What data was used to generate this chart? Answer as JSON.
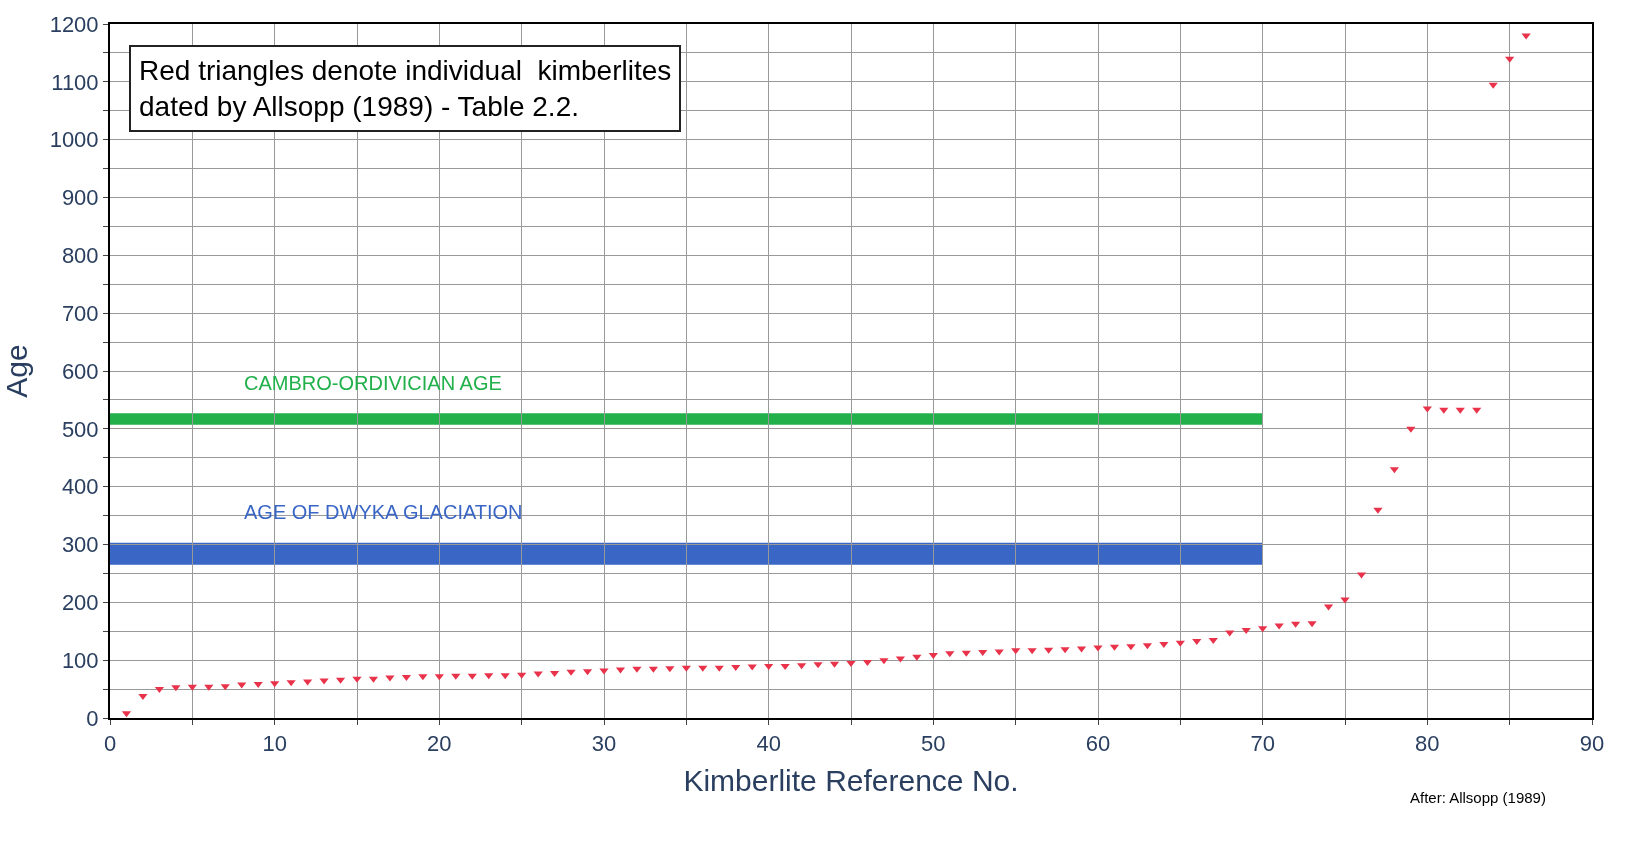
{
  "chart_data": {
    "type": "scatter",
    "xlabel": "Kimberlite Reference No.",
    "ylabel": "Age",
    "x": [
      1,
      2,
      3,
      4,
      5,
      6,
      7,
      8,
      9,
      10,
      11,
      12,
      13,
      14,
      15,
      16,
      17,
      18,
      19,
      20,
      21,
      22,
      23,
      24,
      25,
      26,
      27,
      28,
      29,
      30,
      31,
      32,
      33,
      34,
      35,
      36,
      37,
      38,
      39,
      40,
      41,
      42,
      43,
      44,
      45,
      46,
      47,
      48,
      49,
      50,
      51,
      52,
      53,
      54,
      55,
      56,
      57,
      58,
      59,
      60,
      61,
      62,
      63,
      64,
      65,
      66,
      67,
      68,
      69,
      70,
      71,
      72,
      73,
      74,
      75,
      76,
      77,
      78,
      79,
      80,
      81,
      82,
      83,
      84,
      85,
      86
    ],
    "series": [
      {
        "color": "#e8334a",
        "values": [
          8,
          38,
          50,
          53,
          54,
          54,
          55,
          58,
          59,
          60,
          62,
          63,
          65,
          66,
          68,
          68,
          70,
          71,
          72,
          72,
          73,
          73,
          74,
          74,
          75,
          77,
          78,
          80,
          81,
          82,
          84,
          85,
          85,
          86,
          87,
          87,
          87,
          88,
          89,
          90,
          90,
          91,
          93,
          94,
          95,
          97,
          100,
          103,
          106,
          109,
          112,
          113,
          114,
          115,
          117,
          117,
          118,
          119,
          120,
          122,
          123,
          124,
          126,
          128,
          130,
          133,
          135,
          148,
          152,
          155,
          160,
          163,
          164,
          193,
          205,
          248,
          360,
          430,
          500,
          535,
          533,
          533,
          533,
          1095,
          1140,
          1180
        ]
      }
    ],
    "marker": "triangle",
    "xlim": [
      0,
      90
    ],
    "xticks": [
      0,
      {
        "value": 5,
        "label": null
      },
      10,
      {
        "value": 15,
        "label": null
      },
      20,
      {
        "value": 25,
        "label": null
      },
      30,
      {
        "value": 35,
        "label": null
      },
      40,
      {
        "value": 45,
        "label": null
      },
      50,
      {
        "value": 55,
        "label": null
      },
      60,
      {
        "value": 65,
        "label": null
      },
      70,
      {
        "value": 75,
        "label": null
      },
      80,
      {
        "value": 85,
        "label": null
      },
      90
    ],
    "ylim": [
      0,
      1200
    ],
    "yticks": [
      0,
      {
        "value": 50,
        "label": null
      },
      100,
      {
        "value": 150,
        "label": null
      },
      200,
      {
        "value": 250,
        "label": null
      },
      300,
      {
        "value": 350,
        "label": null
      },
      400,
      {
        "value": 450,
        "label": null
      },
      500,
      {
        "value": 550,
        "label": null
      },
      600,
      {
        "value": 650,
        "label": null
      },
      700,
      {
        "value": 750,
        "label": null
      },
      800,
      {
        "value": 850,
        "label": null
      },
      900,
      {
        "value": 950,
        "label": null
      },
      1000,
      {
        "value": 1050,
        "label": null
      },
      1100,
      {
        "value": 1150,
        "label": null
      },
      1200
    ],
    "grid": true,
    "bands": [
      {
        "axis": "y",
        "from": 507,
        "to": 527,
        "label": "CAMBRO-ORDIVICIAN AGE",
        "color": "#22b04b"
      },
      {
        "axis": "y",
        "from": 265,
        "to": 303,
        "label": "AGE OF DWYKA GLACIATION",
        "color": "#3a66c6"
      }
    ],
    "annotations": [
      "Red triangles denote individual  kimberlites\ndated by Allsopp (1989) - Table 2.2.",
      "After: Allsopp (1989)"
    ]
  }
}
